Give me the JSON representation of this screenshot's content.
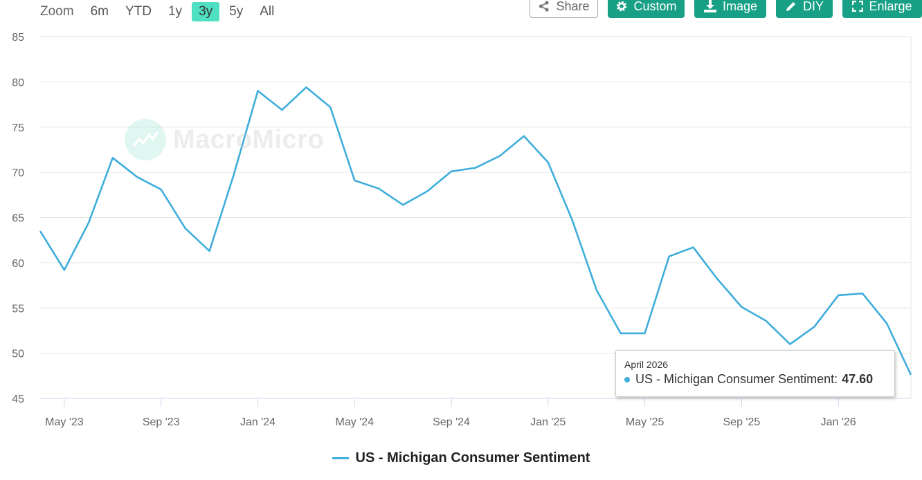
{
  "zoom": {
    "label": "Zoom",
    "options": [
      "6m",
      "YTD",
      "1y",
      "3y",
      "5y",
      "All"
    ],
    "active": "3y"
  },
  "toolbar": {
    "share_label": "Share",
    "custom_label": "Custom",
    "image_label": "Image",
    "diy_label": "DIY",
    "enlarge_label": "Enlarge"
  },
  "watermark": {
    "text": "MacroMicro"
  },
  "tooltip": {
    "date": "April 2026",
    "series_label": "US - Michigan Consumer Sentiment:",
    "value": "47.60"
  },
  "legend": {
    "label": "US - Michigan Consumer Sentiment"
  },
  "colors": {
    "series": "#3eaddb",
    "accent": "#17a085",
    "zoom_active": "#4fdfc1"
  },
  "chart_data": {
    "type": "line",
    "title": "",
    "xlabel": "",
    "ylabel": "",
    "ylim": [
      45,
      85
    ],
    "yticks": [
      45,
      50,
      55,
      60,
      65,
      70,
      75,
      80,
      85
    ],
    "xticks": [
      "May '23",
      "Sep '23",
      "Jan '24",
      "May '24",
      "Sep '24",
      "Jan '25",
      "May '25",
      "Sep '25",
      "Jan '26"
    ],
    "xtick_dates": [
      "2023-05",
      "2023-09",
      "2024-01",
      "2024-05",
      "2024-09",
      "2025-01",
      "2025-05",
      "2025-09",
      "2026-01"
    ],
    "grid": true,
    "legend_position": "bottom",
    "series": [
      {
        "name": "US - Michigan Consumer Sentiment",
        "x": [
          "2023-04",
          "2023-05",
          "2023-06",
          "2023-07",
          "2023-08",
          "2023-09",
          "2023-10",
          "2023-11",
          "2023-12",
          "2024-01",
          "2024-02",
          "2024-03",
          "2024-04",
          "2024-05",
          "2024-06",
          "2024-07",
          "2024-08",
          "2024-09",
          "2024-10",
          "2024-11",
          "2024-12",
          "2025-01",
          "2025-02",
          "2025-03",
          "2025-04",
          "2025-05",
          "2025-06",
          "2025-07",
          "2025-08",
          "2025-09",
          "2025-10",
          "2025-11",
          "2025-12",
          "2026-01",
          "2026-02",
          "2026-03",
          "2026-04"
        ],
        "values": [
          63.5,
          59.2,
          64.4,
          71.6,
          69.5,
          68.1,
          63.8,
          61.3,
          69.7,
          79.0,
          76.9,
          79.4,
          77.2,
          69.1,
          68.2,
          66.4,
          67.9,
          70.1,
          70.5,
          71.8,
          74.0,
          71.1,
          64.7,
          57.0,
          52.2,
          52.2,
          60.7,
          61.7,
          58.2,
          55.1,
          53.6,
          51.0,
          52.9,
          56.4,
          56.6,
          53.3,
          47.6
        ]
      }
    ]
  }
}
